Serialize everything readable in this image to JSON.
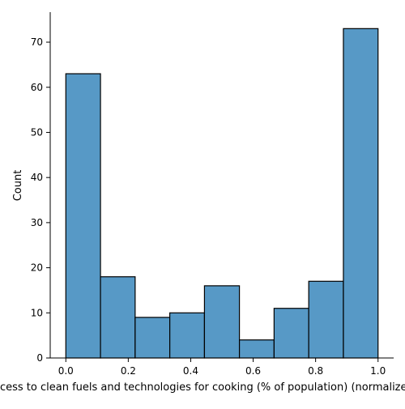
{
  "chart_data": {
    "type": "bar",
    "subtype": "histogram",
    "title": "",
    "xlabel": "Access to clean fuels and technologies for cooking (% of population) (normalized)",
    "ylabel": "Count",
    "xlim": [
      -0.05,
      1.05
    ],
    "ylim": [
      0,
      76.65
    ],
    "x_ticks": [
      0.0,
      0.2,
      0.4,
      0.6,
      0.8,
      1.0
    ],
    "x_tick_labels": [
      "0.0",
      "0.2",
      "0.4",
      "0.6",
      "0.8",
      "1.0"
    ],
    "y_ticks": [
      0,
      10,
      20,
      30,
      40,
      50,
      60,
      70
    ],
    "y_tick_labels": [
      "0",
      "10",
      "20",
      "30",
      "40",
      "50",
      "60",
      "70"
    ],
    "bins": [
      {
        "start": 0.0,
        "end": 0.111,
        "count": 63
      },
      {
        "start": 0.111,
        "end": 0.222,
        "count": 18
      },
      {
        "start": 0.222,
        "end": 0.333,
        "count": 9
      },
      {
        "start": 0.333,
        "end": 0.444,
        "count": 10
      },
      {
        "start": 0.444,
        "end": 0.556,
        "count": 16
      },
      {
        "start": 0.556,
        "end": 0.667,
        "count": 4
      },
      {
        "start": 0.667,
        "end": 0.778,
        "count": 11
      },
      {
        "start": 0.778,
        "end": 0.889,
        "count": 17
      },
      {
        "start": 0.889,
        "end": 1.0,
        "count": 73
      }
    ],
    "grid": false,
    "legend": "none",
    "colors": {
      "bar_fill": "#5799c6",
      "bar_edge": "#000000",
      "axis": "#000000"
    }
  }
}
